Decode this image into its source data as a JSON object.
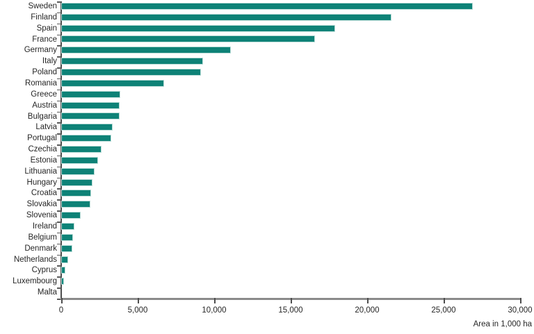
{
  "chart_data": {
    "type": "bar",
    "orientation": "horizontal",
    "title": "",
    "categories": [
      "Sweden",
      "Finland",
      "Spain",
      "France",
      "Germany",
      "Italy",
      "Poland",
      "Romania",
      "Greece",
      "Austria",
      "Bulgaria",
      "Latvia",
      "Portugal",
      "Czechia",
      "Estonia",
      "Lithuania",
      "Hungary",
      "Croatia",
      "Slovakia",
      "Slovenia",
      "Ireland",
      "Belgium",
      "Denmark",
      "Netherlands",
      "Cyprus",
      "Luxembourg",
      "Malta"
    ],
    "values": [
      26800,
      21500,
      17800,
      16500,
      11000,
      9200,
      9050,
      6640,
      3750,
      3740,
      3730,
      3270,
      3170,
      2560,
      2330,
      2100,
      1970,
      1850,
      1830,
      1180,
      780,
      685,
      640,
      370,
      175,
      90,
      0
    ],
    "xlabel": "Area in 1,000 ha",
    "ylabel": "",
    "xlim": [
      0,
      30000
    ],
    "x_ticks": [
      0,
      5000,
      10000,
      15000,
      20000,
      25000,
      30000
    ],
    "x_tick_labels": [
      "0",
      "5,000",
      "10,000",
      "15,000",
      "20,000",
      "25,000",
      "30,000"
    ],
    "grid": false,
    "legend": "none",
    "colors": {
      "bar_fill": "#0e8277",
      "bar_edge": "#b9dcd7",
      "y_axis_line": "#4d4d4d",
      "x_axis_line": "#8a8a8a",
      "tick": "#4d4d4d",
      "text": "#262626"
    }
  }
}
